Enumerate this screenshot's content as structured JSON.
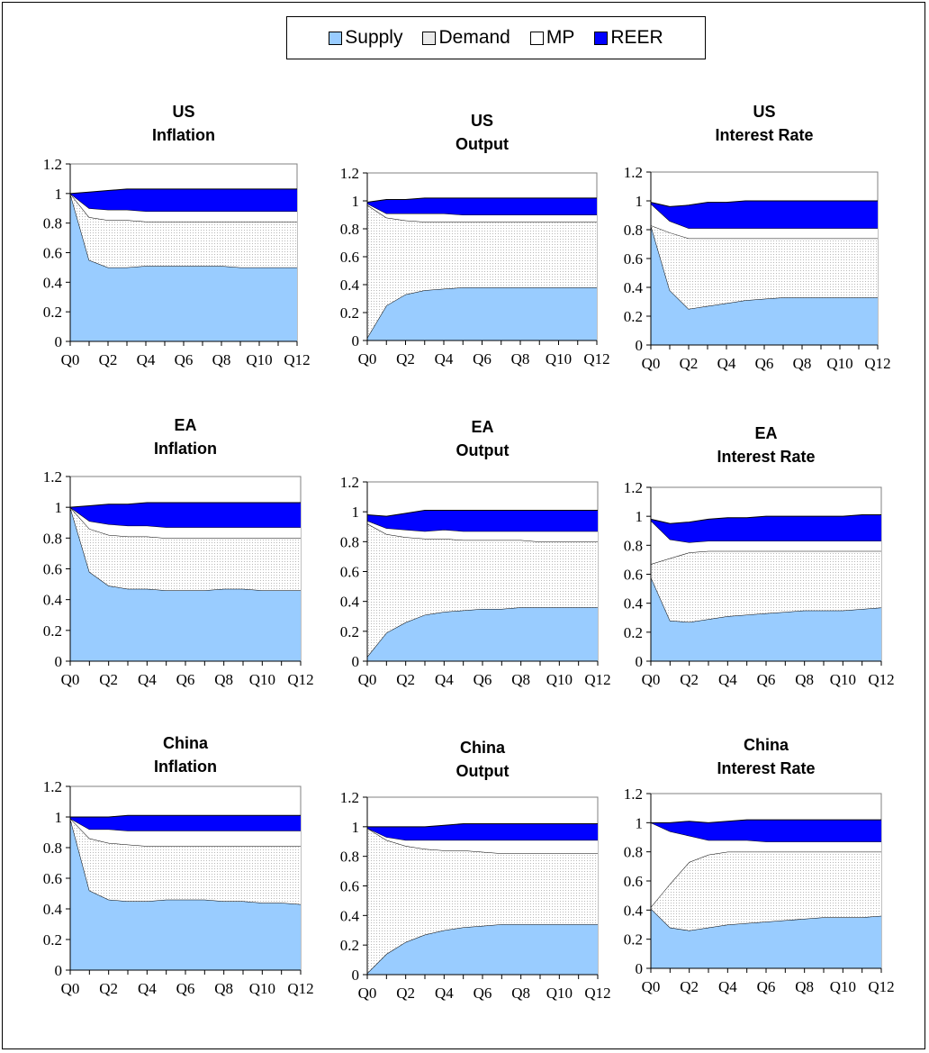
{
  "legend": [
    {
      "name": "Supply",
      "color": "#99ccff",
      "pattern": "none"
    },
    {
      "name": "Demand",
      "color": "#ffffff",
      "pattern": "dots"
    },
    {
      "name": "MP",
      "color": "#ffffff",
      "pattern": "none"
    },
    {
      "name": "REER",
      "color": "#0000ff",
      "pattern": "none"
    }
  ],
  "chart_data": [
    {
      "type": "area",
      "title": [
        "US",
        "Inflation"
      ],
      "x": [
        "Q0",
        "Q1",
        "Q2",
        "Q3",
        "Q4",
        "Q5",
        "Q6",
        "Q7",
        "Q8",
        "Q9",
        "Q10",
        "Q11",
        "Q12"
      ],
      "xticks": [
        "Q0",
        "Q2",
        "Q4",
        "Q6",
        "Q8",
        "Q10",
        "Q12"
      ],
      "ylim": [
        0,
        1.2
      ],
      "yticks": [
        "0",
        "0.2",
        "0.4",
        "0.6",
        "0.8",
        "1",
        "1.2"
      ],
      "grid": "none",
      "series": [
        {
          "name": "Supply",
          "values": [
            1.0,
            0.55,
            0.5,
            0.5,
            0.51,
            0.51,
            0.51,
            0.51,
            0.51,
            0.5,
            0.5,
            0.5,
            0.5
          ]
        },
        {
          "name": "Demand",
          "values": [
            0,
            0.29,
            0.32,
            0.32,
            0.3,
            0.3,
            0.3,
            0.3,
            0.3,
            0.31,
            0.31,
            0.31,
            0.31
          ]
        },
        {
          "name": "MP",
          "values": [
            0,
            0.06,
            0.07,
            0.07,
            0.07,
            0.07,
            0.07,
            0.07,
            0.07,
            0.07,
            0.07,
            0.07,
            0.07
          ]
        },
        {
          "name": "REER",
          "values": [
            0,
            0.11,
            0.13,
            0.14,
            0.15,
            0.15,
            0.15,
            0.15,
            0.15,
            0.15,
            0.15,
            0.15,
            0.15
          ]
        }
      ]
    },
    {
      "type": "area",
      "title": [
        "US",
        "Output"
      ],
      "x": [
        "Q0",
        "Q1",
        "Q2",
        "Q3",
        "Q4",
        "Q5",
        "Q6",
        "Q7",
        "Q8",
        "Q9",
        "Q10",
        "Q11",
        "Q12"
      ],
      "xticks": [
        "Q0",
        "Q2",
        "Q4",
        "Q6",
        "Q8",
        "Q10",
        "Q12"
      ],
      "ylim": [
        0,
        1.2
      ],
      "yticks": [
        "0",
        "0.2",
        "0.4",
        "0.6",
        "0.8",
        "1",
        "1.2"
      ],
      "grid": "none",
      "series": [
        {
          "name": "Supply",
          "values": [
            0.02,
            0.25,
            0.33,
            0.36,
            0.37,
            0.38,
            0.38,
            0.38,
            0.38,
            0.38,
            0.38,
            0.38,
            0.38
          ]
        },
        {
          "name": "Demand",
          "values": [
            0.95,
            0.63,
            0.53,
            0.49,
            0.48,
            0.47,
            0.47,
            0.47,
            0.47,
            0.47,
            0.47,
            0.47,
            0.47
          ]
        },
        {
          "name": "MP",
          "values": [
            0.01,
            0.03,
            0.05,
            0.06,
            0.06,
            0.05,
            0.05,
            0.05,
            0.05,
            0.05,
            0.05,
            0.05,
            0.05
          ]
        },
        {
          "name": "REER",
          "values": [
            0.01,
            0.1,
            0.1,
            0.11,
            0.11,
            0.12,
            0.12,
            0.12,
            0.12,
            0.12,
            0.12,
            0.12,
            0.12
          ]
        }
      ]
    },
    {
      "type": "area",
      "title": [
        "US",
        "Interest Rate"
      ],
      "x": [
        "Q0",
        "Q1",
        "Q2",
        "Q3",
        "Q4",
        "Q5",
        "Q6",
        "Q7",
        "Q8",
        "Q9",
        "Q10",
        "Q11",
        "Q12"
      ],
      "xticks": [
        "Q0",
        "Q2",
        "Q4",
        "Q6",
        "Q8",
        "Q10",
        "Q12"
      ],
      "ylim": [
        0,
        1.2
      ],
      "yticks": [
        "0",
        "0.2",
        "0.4",
        "0.6",
        "0.8",
        "1",
        "1.2"
      ],
      "grid": "none",
      "series": [
        {
          "name": "Supply",
          "values": [
            0.83,
            0.38,
            0.25,
            0.27,
            0.29,
            0.31,
            0.32,
            0.33,
            0.33,
            0.33,
            0.33,
            0.33,
            0.33
          ]
        },
        {
          "name": "Demand",
          "values": [
            0,
            0.4,
            0.49,
            0.47,
            0.45,
            0.43,
            0.42,
            0.41,
            0.41,
            0.41,
            0.41,
            0.41,
            0.41
          ]
        },
        {
          "name": "MP",
          "values": [
            0.15,
            0.08,
            0.07,
            0.07,
            0.07,
            0.07,
            0.07,
            0.07,
            0.07,
            0.07,
            0.07,
            0.07,
            0.07
          ]
        },
        {
          "name": "REER",
          "values": [
            0.01,
            0.1,
            0.16,
            0.18,
            0.18,
            0.19,
            0.19,
            0.19,
            0.19,
            0.19,
            0.19,
            0.19,
            0.19
          ]
        }
      ]
    },
    {
      "type": "area",
      "title": [
        "EA",
        "Inflation"
      ],
      "x": [
        "Q0",
        "Q1",
        "Q2",
        "Q3",
        "Q4",
        "Q5",
        "Q6",
        "Q7",
        "Q8",
        "Q9",
        "Q10",
        "Q11",
        "Q12"
      ],
      "xticks": [
        "Q0",
        "Q2",
        "Q4",
        "Q6",
        "Q8",
        "Q10",
        "Q12"
      ],
      "ylim": [
        0,
        1.2
      ],
      "yticks": [
        "0",
        "0.2",
        "0.4",
        "0.6",
        "0.8",
        "1",
        "1.2"
      ],
      "grid": "none",
      "series": [
        {
          "name": "Supply",
          "values": [
            1.0,
            0.58,
            0.49,
            0.47,
            0.47,
            0.46,
            0.46,
            0.46,
            0.47,
            0.47,
            0.46,
            0.46,
            0.46
          ]
        },
        {
          "name": "Demand",
          "values": [
            0,
            0.28,
            0.33,
            0.34,
            0.34,
            0.34,
            0.34,
            0.34,
            0.33,
            0.33,
            0.34,
            0.34,
            0.34
          ]
        },
        {
          "name": "MP",
          "values": [
            0,
            0.05,
            0.07,
            0.07,
            0.07,
            0.07,
            0.07,
            0.07,
            0.07,
            0.07,
            0.07,
            0.07,
            0.07
          ]
        },
        {
          "name": "REER",
          "values": [
            0,
            0.1,
            0.13,
            0.14,
            0.15,
            0.16,
            0.16,
            0.16,
            0.16,
            0.16,
            0.16,
            0.16,
            0.16
          ]
        }
      ]
    },
    {
      "type": "area",
      "title": [
        "EA",
        "Output"
      ],
      "x": [
        "Q0",
        "Q1",
        "Q2",
        "Q3",
        "Q4",
        "Q5",
        "Q6",
        "Q7",
        "Q8",
        "Q9",
        "Q10",
        "Q11",
        "Q12"
      ],
      "xticks": [
        "Q0",
        "Q2",
        "Q4",
        "Q6",
        "Q8",
        "Q10",
        "Q12"
      ],
      "ylim": [
        0,
        1.2
      ],
      "yticks": [
        "0",
        "0.2",
        "0.4",
        "0.6",
        "0.8",
        "1",
        "1.2"
      ],
      "grid": "none",
      "series": [
        {
          "name": "Supply",
          "values": [
            0.03,
            0.19,
            0.26,
            0.31,
            0.33,
            0.34,
            0.35,
            0.35,
            0.36,
            0.36,
            0.36,
            0.36,
            0.36
          ]
        },
        {
          "name": "Demand",
          "values": [
            0.89,
            0.66,
            0.57,
            0.51,
            0.49,
            0.47,
            0.46,
            0.46,
            0.45,
            0.44,
            0.44,
            0.44,
            0.44
          ]
        },
        {
          "name": "MP",
          "values": [
            0.02,
            0.04,
            0.05,
            0.05,
            0.06,
            0.06,
            0.06,
            0.06,
            0.06,
            0.07,
            0.07,
            0.07,
            0.07
          ]
        },
        {
          "name": "REER",
          "values": [
            0.04,
            0.08,
            0.11,
            0.14,
            0.13,
            0.14,
            0.14,
            0.14,
            0.14,
            0.14,
            0.14,
            0.14,
            0.14
          ]
        }
      ]
    },
    {
      "type": "area",
      "title": [
        "EA",
        "Interest Rate"
      ],
      "x": [
        "Q0",
        "Q1",
        "Q2",
        "Q3",
        "Q4",
        "Q5",
        "Q6",
        "Q7",
        "Q8",
        "Q9",
        "Q10",
        "Q11",
        "Q12"
      ],
      "xticks": [
        "Q0",
        "Q2",
        "Q4",
        "Q6",
        "Q8",
        "Q10",
        "Q12"
      ],
      "ylim": [
        0,
        1.2
      ],
      "yticks": [
        "0",
        "0.2",
        "0.4",
        "0.6",
        "0.8",
        "1",
        "1.2"
      ],
      "grid": "none",
      "series": [
        {
          "name": "Supply",
          "values": [
            0.58,
            0.28,
            0.27,
            0.29,
            0.31,
            0.32,
            0.33,
            0.34,
            0.35,
            0.35,
            0.35,
            0.36,
            0.37
          ]
        },
        {
          "name": "Demand",
          "values": [
            0.09,
            0.43,
            0.48,
            0.47,
            0.45,
            0.44,
            0.43,
            0.42,
            0.41,
            0.41,
            0.41,
            0.4,
            0.39
          ]
        },
        {
          "name": "MP",
          "values": [
            0.3,
            0.13,
            0.07,
            0.07,
            0.07,
            0.07,
            0.07,
            0.07,
            0.07,
            0.07,
            0.07,
            0.07,
            0.07
          ]
        },
        {
          "name": "REER",
          "values": [
            0.01,
            0.11,
            0.14,
            0.15,
            0.16,
            0.16,
            0.17,
            0.17,
            0.17,
            0.17,
            0.17,
            0.18,
            0.18
          ]
        }
      ]
    },
    {
      "type": "area",
      "title": [
        "China",
        "Inflation"
      ],
      "x": [
        "Q0",
        "Q1",
        "Q2",
        "Q3",
        "Q4",
        "Q5",
        "Q6",
        "Q7",
        "Q8",
        "Q9",
        "Q10",
        "Q11",
        "Q12"
      ],
      "xticks": [
        "Q0",
        "Q2",
        "Q4",
        "Q6",
        "Q8",
        "Q10",
        "Q12"
      ],
      "ylim": [
        0,
        1.2
      ],
      "yticks": [
        "0",
        "0.2",
        "0.4",
        "0.6",
        "0.8",
        "1",
        "1.2"
      ],
      "grid": "none",
      "series": [
        {
          "name": "Supply",
          "values": [
            0.99,
            0.52,
            0.46,
            0.45,
            0.45,
            0.46,
            0.46,
            0.46,
            0.45,
            0.45,
            0.44,
            0.44,
            0.43
          ]
        },
        {
          "name": "Demand",
          "values": [
            0,
            0.34,
            0.37,
            0.37,
            0.36,
            0.35,
            0.35,
            0.35,
            0.36,
            0.36,
            0.37,
            0.37,
            0.38
          ]
        },
        {
          "name": "MP",
          "values": [
            0,
            0.06,
            0.09,
            0.09,
            0.1,
            0.1,
            0.1,
            0.1,
            0.1,
            0.1,
            0.1,
            0.1,
            0.1
          ]
        },
        {
          "name": "REER",
          "values": [
            0.01,
            0.08,
            0.08,
            0.1,
            0.1,
            0.1,
            0.1,
            0.1,
            0.1,
            0.1,
            0.1,
            0.1,
            0.1
          ]
        }
      ]
    },
    {
      "type": "area",
      "title": [
        "China",
        "Output"
      ],
      "x": [
        "Q0",
        "Q1",
        "Q2",
        "Q3",
        "Q4",
        "Q5",
        "Q6",
        "Q7",
        "Q8",
        "Q9",
        "Q10",
        "Q11",
        "Q12"
      ],
      "xticks": [
        "Q0",
        "Q2",
        "Q4",
        "Q6",
        "Q8",
        "Q10",
        "Q12"
      ],
      "ylim": [
        0,
        1.2
      ],
      "yticks": [
        "0",
        "0.2",
        "0.4",
        "0.6",
        "0.8",
        "1",
        "1.2"
      ],
      "grid": "none",
      "series": [
        {
          "name": "Supply",
          "values": [
            0.01,
            0.14,
            0.22,
            0.27,
            0.3,
            0.32,
            0.33,
            0.34,
            0.34,
            0.34,
            0.34,
            0.34,
            0.34
          ]
        },
        {
          "name": "Demand",
          "values": [
            0.98,
            0.77,
            0.65,
            0.58,
            0.54,
            0.52,
            0.5,
            0.48,
            0.48,
            0.48,
            0.48,
            0.48,
            0.48
          ]
        },
        {
          "name": "MP",
          "values": [
            0,
            0.02,
            0.04,
            0.06,
            0.07,
            0.07,
            0.08,
            0.09,
            0.09,
            0.09,
            0.09,
            0.09,
            0.09
          ]
        },
        {
          "name": "REER",
          "values": [
            0.01,
            0.07,
            0.09,
            0.09,
            0.1,
            0.11,
            0.11,
            0.11,
            0.11,
            0.11,
            0.11,
            0.11,
            0.11
          ]
        }
      ]
    },
    {
      "type": "area",
      "title": [
        "China",
        "Interest Rate"
      ],
      "x": [
        "Q0",
        "Q1",
        "Q2",
        "Q3",
        "Q4",
        "Q5",
        "Q6",
        "Q7",
        "Q8",
        "Q9",
        "Q10",
        "Q11",
        "Q12"
      ],
      "xticks": [
        "Q0",
        "Q2",
        "Q4",
        "Q6",
        "Q8",
        "Q10",
        "Q12"
      ],
      "ylim": [
        0,
        1.2
      ],
      "yticks": [
        "0",
        "0.2",
        "0.4",
        "0.6",
        "0.8",
        "1",
        "1.2"
      ],
      "grid": "none",
      "series": [
        {
          "name": "Supply",
          "values": [
            0.41,
            0.28,
            0.26,
            0.28,
            0.3,
            0.31,
            0.32,
            0.33,
            0.34,
            0.35,
            0.35,
            0.35,
            0.36
          ]
        },
        {
          "name": "Demand",
          "values": [
            0.01,
            0.3,
            0.47,
            0.5,
            0.5,
            0.49,
            0.48,
            0.47,
            0.46,
            0.45,
            0.45,
            0.45,
            0.44
          ]
        },
        {
          "name": "MP",
          "values": [
            0.58,
            0.36,
            0.18,
            0.1,
            0.08,
            0.08,
            0.07,
            0.07,
            0.07,
            0.07,
            0.07,
            0.07,
            0.07
          ]
        },
        {
          "name": "REER",
          "values": [
            0,
            0.06,
            0.1,
            0.12,
            0.13,
            0.14,
            0.15,
            0.15,
            0.15,
            0.15,
            0.15,
            0.15,
            0.15
          ]
        }
      ]
    }
  ]
}
